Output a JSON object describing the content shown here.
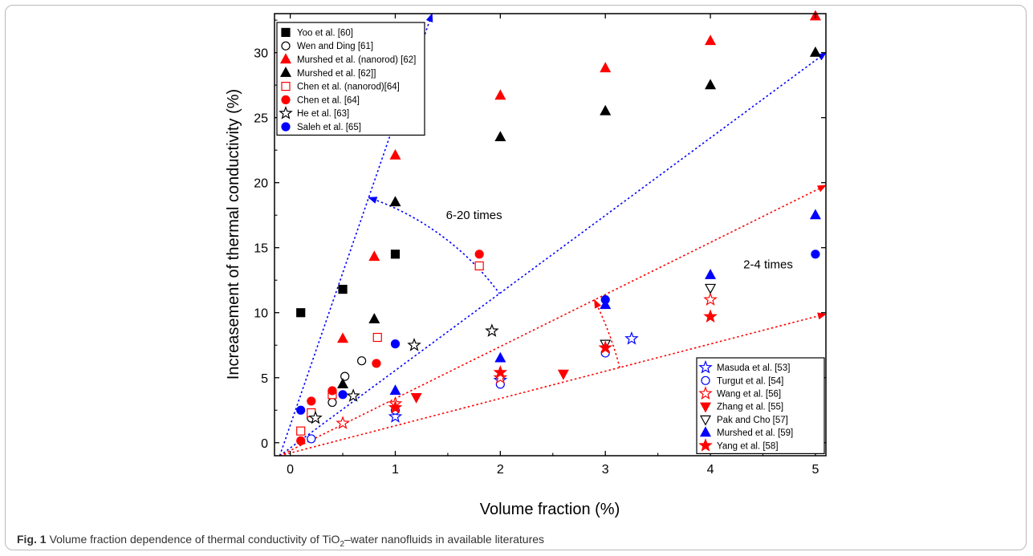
{
  "caption": {
    "label": "Fig. 1",
    "text_before": "Volume fraction dependence of thermal conductivity of TiO",
    "subscript": "2",
    "text_after": "–water nanofluids in available literatures"
  },
  "chart_data": {
    "type": "scatter",
    "xlabel": "Volume fraction (%)",
    "ylabel": "Increasement of thermal conductivity (%)",
    "xlim": [
      -0.15,
      5.1
    ],
    "ylim": [
      -1,
      33
    ],
    "xticks": [
      0,
      1,
      2,
      3,
      4,
      5
    ],
    "yticks": [
      0,
      5,
      10,
      15,
      20,
      25,
      30
    ],
    "grid": false,
    "legends": [
      {
        "placement": "top-left",
        "entries": [
          "Yoo et al. [60]",
          "Wen and Ding [61]",
          "Murshed et al. (nanorod) [62]",
          "Murshed et al. [62]]",
          "Chen et al. (nanorod)[64]",
          "Chen et al. [64]",
          "He et al. [63]",
          "Saleh et al. [65]"
        ]
      },
      {
        "placement": "bottom-right",
        "entries": [
          "Masuda et al. [53]",
          "Turgut et al. [54]",
          "Wang et al. [56]",
          "Zhang et al. [55]",
          "Pak and Cho [57]",
          "Murshed et al. [59]",
          "Yang et al. [58]"
        ]
      }
    ],
    "series": [
      {
        "name": "Yoo et al. [60]",
        "marker": "square",
        "fill": true,
        "color": "#000000",
        "points": [
          [
            0.1,
            10.0
          ],
          [
            0.5,
            11.8
          ],
          [
            1.0,
            14.5
          ]
        ]
      },
      {
        "name": "Wen and Ding [61]",
        "marker": "circle",
        "fill": false,
        "color": "#000000",
        "points": [
          [
            0.2,
            1.9
          ],
          [
            0.4,
            3.1
          ],
          [
            0.52,
            5.1
          ],
          [
            0.68,
            6.3
          ]
        ]
      },
      {
        "name": "Murshed et al. (nanorod) [62]",
        "marker": "triangle",
        "fill": true,
        "color": "#ff0000",
        "points": [
          [
            0.5,
            8.0
          ],
          [
            0.8,
            14.3
          ],
          [
            1.0,
            22.1
          ],
          [
            2.0,
            26.7
          ],
          [
            3.0,
            28.8
          ],
          [
            4.0,
            30.9
          ],
          [
            5.0,
            32.8
          ]
        ]
      },
      {
        "name": "Murshed et al. [62]]",
        "marker": "triangle",
        "fill": true,
        "color": "#000000",
        "points": [
          [
            0.5,
            4.5
          ],
          [
            0.8,
            9.5
          ],
          [
            1.0,
            18.5
          ],
          [
            2.0,
            23.5
          ],
          [
            3.0,
            25.5
          ],
          [
            4.0,
            27.5
          ],
          [
            5.0,
            30.0
          ]
        ]
      },
      {
        "name": "Chen et al. (nanorod)[64]",
        "marker": "square",
        "fill": false,
        "color": "#ff0000",
        "points": [
          [
            0.1,
            0.9
          ],
          [
            0.2,
            2.3
          ],
          [
            0.4,
            3.7
          ],
          [
            0.83,
            8.1
          ],
          [
            1.8,
            13.6
          ]
        ]
      },
      {
        "name": "Chen et al. [64]",
        "marker": "circle",
        "fill": true,
        "color": "#ff0000",
        "points": [
          [
            0.1,
            0.15
          ],
          [
            0.2,
            3.2
          ],
          [
            0.4,
            4.0
          ],
          [
            0.82,
            6.1
          ],
          [
            1.8,
            14.5
          ]
        ]
      },
      {
        "name": "He et al. [63]",
        "marker": "star",
        "fill": false,
        "color": "#000000",
        "points": [
          [
            0.24,
            1.9
          ],
          [
            0.6,
            3.6
          ],
          [
            1.18,
            7.5
          ],
          [
            1.92,
            8.6
          ]
        ]
      },
      {
        "name": "Saleh et al. [65]",
        "marker": "circle",
        "fill": true,
        "color": "#0000ff",
        "points": [
          [
            0.1,
            2.5
          ],
          [
            0.5,
            3.7
          ],
          [
            1.0,
            7.6
          ],
          [
            3.0,
            11.0
          ],
          [
            5.0,
            14.5
          ]
        ]
      },
      {
        "name": "Masuda et al. [53]",
        "marker": "star",
        "fill": false,
        "color": "#0000ff",
        "points": [
          [
            1.0,
            2.0
          ],
          [
            2.0,
            4.8
          ],
          [
            3.25,
            8.0
          ]
        ]
      },
      {
        "name": "Turgut et al. [54]",
        "marker": "circle",
        "fill": false,
        "color": "#0000ff",
        "points": [
          [
            0.2,
            0.3
          ],
          [
            1.0,
            2.5
          ],
          [
            2.0,
            4.5
          ],
          [
            3.0,
            6.9
          ]
        ]
      },
      {
        "name": "Wang et al. [56]",
        "marker": "star",
        "fill": false,
        "color": "#ff0000",
        "points": [
          [
            0.5,
            1.5
          ],
          [
            1.0,
            3.0
          ],
          [
            2.0,
            5.0
          ],
          [
            4.0,
            11.0
          ]
        ]
      },
      {
        "name": "Zhang et al. [55]",
        "marker": "triangle-down",
        "fill": true,
        "color": "#ff0000",
        "points": [
          [
            1.2,
            3.5
          ],
          [
            2.6,
            5.3
          ]
        ]
      },
      {
        "name": "Pak and Cho [57]",
        "marker": "triangle-down",
        "fill": false,
        "color": "#000000",
        "points": [
          [
            3.0,
            7.6
          ],
          [
            4.0,
            11.9
          ]
        ]
      },
      {
        "name": "Murshed et al. [59]",
        "marker": "triangle",
        "fill": true,
        "color": "#0000ff",
        "points": [
          [
            1.0,
            4.0
          ],
          [
            2.0,
            6.5
          ],
          [
            3.0,
            10.6
          ],
          [
            4.0,
            12.9
          ],
          [
            5.0,
            17.5
          ]
        ]
      },
      {
        "name": "Yang et al. [58]",
        "marker": "star",
        "fill": true,
        "color": "#ff0000",
        "points": [
          [
            1.0,
            2.7
          ],
          [
            2.0,
            5.4
          ],
          [
            3.0,
            7.3
          ],
          [
            4.0,
            9.7
          ]
        ]
      }
    ],
    "reference_lines": [
      {
        "color": "#0000ff",
        "style": "dotted",
        "from": [
          -0.1,
          -1.0
        ],
        "to": [
          1.35,
          33.0
        ]
      },
      {
        "color": "#0000ff",
        "style": "dotted",
        "from": [
          -0.1,
          -1.0
        ],
        "to": [
          5.1,
          30.0
        ]
      },
      {
        "color": "#ff0000",
        "style": "dotted",
        "from": [
          -0.1,
          -1.0
        ],
        "to": [
          5.1,
          19.8
        ]
      },
      {
        "color": "#ff0000",
        "style": "dotted",
        "from": [
          -0.1,
          -1.0
        ],
        "to": [
          5.1,
          9.9
        ]
      }
    ],
    "annotations": [
      {
        "text": "6-20 times",
        "x": 1.75,
        "y": 17.2,
        "color": "#000000"
      },
      {
        "text": "2-4 times",
        "x": 4.55,
        "y": 13.4,
        "color": "#000000"
      }
    ],
    "range_arcs": [
      {
        "color": "#0000ff",
        "center": [
          -0.1,
          -1.0
        ],
        "radius": 21.0,
        "from_line": 0,
        "to_line": 1
      },
      {
        "color": "#ff0000",
        "center": [
          -0.1,
          -1.0
        ],
        "radius": 27.0,
        "from_line": 2,
        "to_line": 3
      }
    ]
  }
}
